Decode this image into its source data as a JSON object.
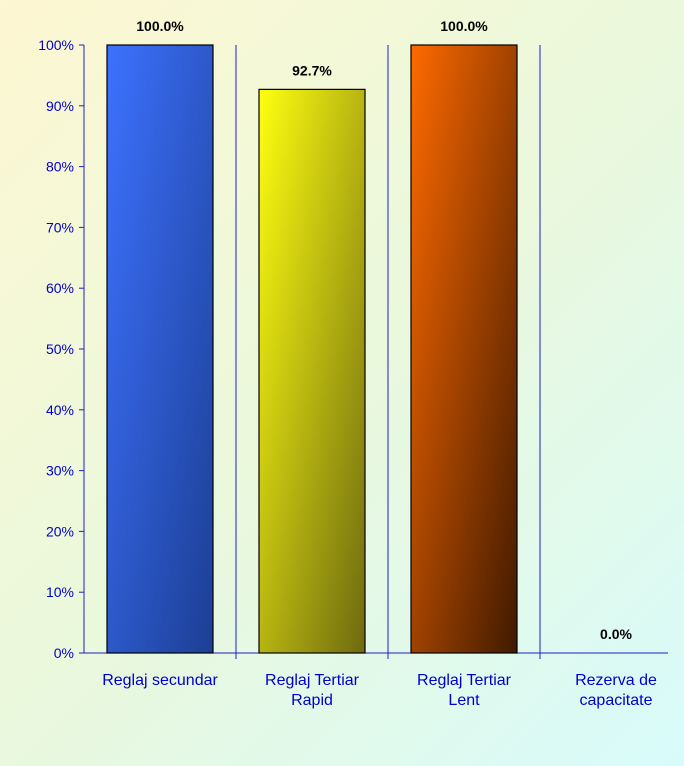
{
  "chart_data": {
    "type": "bar",
    "title": "",
    "xlabel": "",
    "ylabel": "",
    "categories": [
      [
        "Reglaj secundar"
      ],
      [
        "Reglaj Tertiar",
        "Rapid"
      ],
      [
        "Reglaj Tertiar",
        "Lent"
      ],
      [
        "Rezerva de",
        "capacitate"
      ]
    ],
    "values": [
      100.0,
      92.7,
      100.0,
      0.0
    ],
    "data_labels": [
      "100.0%",
      "92.7%",
      "100.0%",
      "0.0%"
    ],
    "ylim": [
      0,
      100
    ],
    "yticks": [
      "0%",
      "10%",
      "20%",
      "30%",
      "40%",
      "50%",
      "60%",
      "70%",
      "80%",
      "90%",
      "100%"
    ],
    "grid": false,
    "legend": "none",
    "colors": {
      "bars": [
        [
          "#3d72ff",
          "#1c3f94"
        ],
        [
          "#ffff10",
          "#6e6a10"
        ],
        [
          "#ff6a00",
          "#401a00"
        ],
        [
          "#888888",
          "#444444"
        ]
      ],
      "axis": "#2020c0",
      "tick_label": "#0000cc",
      "category_label": "#0000cc",
      "data_label": "#000000"
    }
  }
}
